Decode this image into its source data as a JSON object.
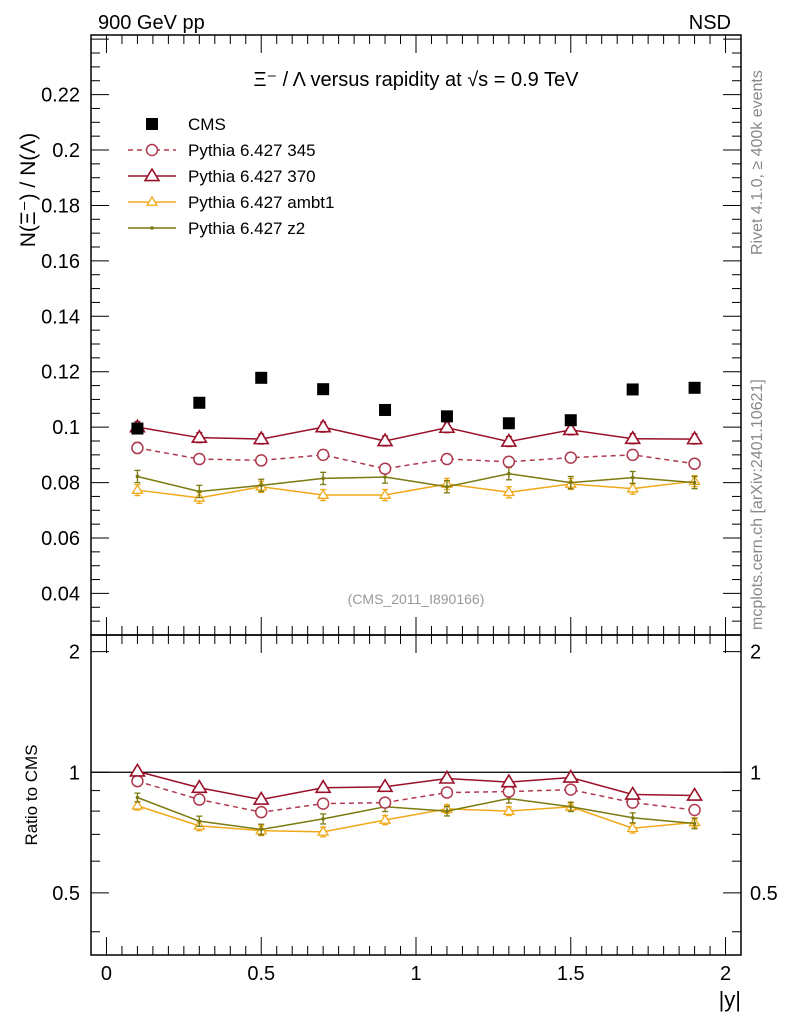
{
  "header": {
    "left": "900 GeV pp",
    "right": "NSD"
  },
  "side_text": {
    "rivet": "Rivet 4.1.0, ≥ 400k events",
    "mcplots": "mcplots.cern.ch [arXiv:2401.10621]"
  },
  "colors": {
    "cms": "#000000",
    "p345": "#b0384d",
    "p370": "#9a1028",
    "ambt1": "#f0a818",
    "z2": "#7a7a10"
  },
  "chart_data": {
    "type": "scatter",
    "title": "Ξ⁻ / Λ versus rapidity at √s = 0.9 TeV",
    "analysis_tag": "(CMS_2011_I890166)",
    "xlabel": "|y|",
    "ylabel": "N(Ξ⁻) / N(Λ)",
    "ratio_ylabel": "Ratio to CMS",
    "xlim": [
      -0.05,
      2.05
    ],
    "ylim": [
      0.025,
      0.2415
    ],
    "ratio_ylim": [
      0.35,
      2.2
    ],
    "x_ticks": [
      "0",
      "0.5",
      "1",
      "1.5",
      "2"
    ],
    "y_ticks": [
      "0.04",
      "0.06",
      "0.08",
      "0.1",
      "0.12",
      "0.14",
      "0.16",
      "0.18",
      "0.2",
      "0.22"
    ],
    "ratio_y_ticks": [
      "0.5",
      "1",
      "2"
    ],
    "x": [
      0.1,
      0.3,
      0.5,
      0.7,
      0.9,
      1.1,
      1.3,
      1.5,
      1.7,
      1.9
    ],
    "series": [
      {
        "name": "CMS",
        "key": "cms",
        "marker": "square",
        "values": [
          0.0995,
          0.1088,
          0.1178,
          0.1137,
          0.1062,
          0.1039,
          0.1014,
          0.1025,
          0.1136,
          0.1142
        ],
        "errors": [
          0.001,
          0.001,
          0.001,
          0.001,
          0.001,
          0.001,
          0.001,
          0.001,
          0.001,
          0.001
        ]
      },
      {
        "name": "Pythia 6.427 345",
        "key": "p345",
        "marker": "circle-open",
        "dashed": true,
        "values": [
          0.0925,
          0.0885,
          0.088,
          0.09,
          0.085,
          0.0885,
          0.0875,
          0.089,
          0.09,
          0.0868
        ],
        "errors": [
          0.002,
          0.0018,
          0.0018,
          0.0018,
          0.0018,
          0.0018,
          0.0018,
          0.0018,
          0.0018,
          0.0018
        ]
      },
      {
        "name": "Pythia 6.427 370",
        "key": "p370",
        "marker": "triangle-open",
        "values": [
          0.1,
          0.0962,
          0.0957,
          0.1,
          0.095,
          0.0998,
          0.0948,
          0.099,
          0.0958,
          0.0957
        ],
        "errors": [
          0.002,
          0.0018,
          0.0018,
          0.0018,
          0.0018,
          0.0018,
          0.0018,
          0.0018,
          0.0018,
          0.0018
        ]
      },
      {
        "name": "Pythia 6.427 ambt1",
        "key": "ambt1",
        "marker": "triangle-small",
        "values": [
          0.0773,
          0.0745,
          0.0785,
          0.0755,
          0.0755,
          0.0795,
          0.0765,
          0.0795,
          0.0778,
          0.0805
        ],
        "errors": [
          0.002,
          0.002,
          0.002,
          0.002,
          0.002,
          0.002,
          0.002,
          0.002,
          0.002,
          0.002
        ]
      },
      {
        "name": "Pythia 6.427 z2",
        "key": "z2",
        "marker": "dot",
        "values": [
          0.0822,
          0.0768,
          0.079,
          0.0815,
          0.082,
          0.0785,
          0.0832,
          0.08,
          0.0818,
          0.08
        ],
        "errors": [
          0.0022,
          0.0022,
          0.0022,
          0.0022,
          0.0022,
          0.0022,
          0.0022,
          0.0022,
          0.0022,
          0.0022
        ]
      }
    ],
    "ratio_series": [
      {
        "key": "p345",
        "marker": "circle-open",
        "dashed": true,
        "values": [
          0.95,
          0.855,
          0.795,
          0.835,
          0.84,
          0.89,
          0.895,
          0.905,
          0.84,
          0.805
        ],
        "errors": [
          0.02,
          0.015,
          0.015,
          0.015,
          0.015,
          0.015,
          0.015,
          0.015,
          0.015,
          0.015
        ]
      },
      {
        "key": "p370",
        "marker": "triangle-open",
        "values": [
          1.005,
          0.915,
          0.855,
          0.915,
          0.92,
          0.965,
          0.945,
          0.97,
          0.88,
          0.875
        ],
        "errors": [
          0.02,
          0.015,
          0.015,
          0.015,
          0.015,
          0.015,
          0.015,
          0.015,
          0.015,
          0.015
        ]
      },
      {
        "key": "ambt1",
        "marker": "triangle-small",
        "values": [
          0.825,
          0.735,
          0.715,
          0.71,
          0.76,
          0.81,
          0.8,
          0.82,
          0.725,
          0.75
        ],
        "errors": [
          0.02,
          0.02,
          0.02,
          0.02,
          0.02,
          0.02,
          0.02,
          0.02,
          0.02,
          0.02
        ]
      },
      {
        "key": "z2",
        "marker": "dot",
        "values": [
          0.865,
          0.755,
          0.72,
          0.765,
          0.82,
          0.8,
          0.86,
          0.82,
          0.77,
          0.745
        ],
        "errors": [
          0.022,
          0.022,
          0.022,
          0.022,
          0.022,
          0.022,
          0.022,
          0.022,
          0.022,
          0.022
        ]
      }
    ],
    "reference_line": 1
  }
}
